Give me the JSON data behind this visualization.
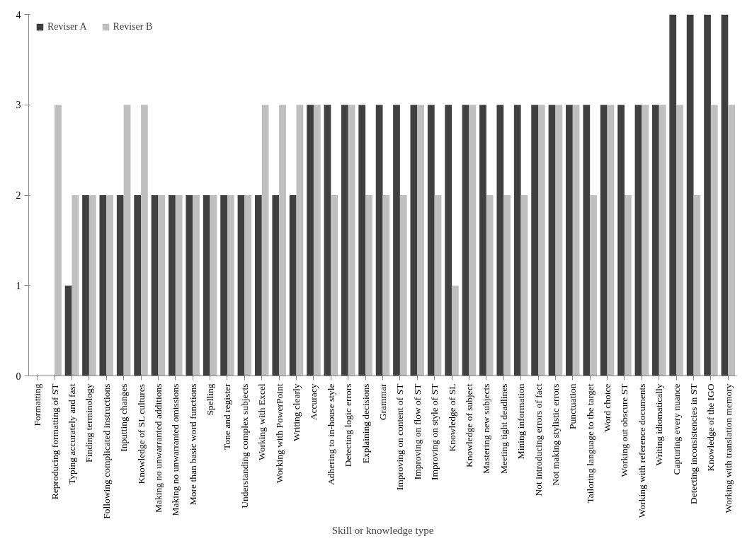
{
  "chart_data": {
    "type": "bar",
    "xlabel": "Skill or knowledge type",
    "categories": [
      "Formatting",
      "Reproducing formatting of ST",
      "Typing accurately and fast",
      "Finding terminology",
      "Following complicated instructions",
      "Inputting changes",
      "Knowledge of SL cultures",
      "Making no unwarranted additions",
      "Making no unwarranted omissions",
      "More than basic word functions",
      "Spelling",
      "Tone and register",
      "Understanding complex subjects",
      "Working with Excel",
      "Working with PowerPoint",
      "Writing clearly",
      "Accuracy",
      "Adhering to in-house style",
      "Detecting logic errors",
      "Explaining decisions",
      "Grammar",
      "Improving on content of ST",
      "Improving on flow of ST",
      "Improving on style of ST",
      "Knowledge of SL",
      "Knowledge of subject",
      "Mastering new subjects",
      "Meeting tight deadlines",
      "Mining information",
      "Not introducing errors of fact",
      "Not making stylistic errors",
      "Punctuation",
      "Tailoring language to the target",
      "Word choice",
      "Working out obscure ST",
      "Working with reference documents",
      "Writing idiomatically",
      "Capturing every nuance",
      "Detecting inconsistencies in ST",
      "Knowledge of the IGO",
      "Working with translation memory"
    ],
    "series": [
      {
        "name": "Reviser A",
        "color": "#404040",
        "values": [
          0,
          0,
          1,
          2,
          2,
          2,
          2,
          2,
          2,
          2,
          2,
          2,
          2,
          2,
          2,
          2,
          3,
          3,
          3,
          3,
          3,
          3,
          3,
          3,
          3,
          3,
          3,
          3,
          3,
          3,
          3,
          3,
          3,
          3,
          3,
          3,
          3,
          4,
          4,
          4,
          4
        ]
      },
      {
        "name": "Reviser B",
        "color": "#bfbfbf",
        "values": [
          0,
          3,
          2,
          2,
          2,
          3,
          3,
          2,
          2,
          2,
          2,
          2,
          2,
          3,
          3,
          3,
          3,
          2,
          3,
          2,
          2,
          2,
          3,
          2,
          1,
          3,
          2,
          2,
          2,
          3,
          3,
          3,
          2,
          3,
          2,
          3,
          3,
          3,
          2,
          3,
          3
        ]
      }
    ],
    "ylim": [
      0,
      4
    ],
    "yticks": [
      0,
      1,
      2,
      3,
      4
    ],
    "grid": false,
    "legend": "top left"
  }
}
